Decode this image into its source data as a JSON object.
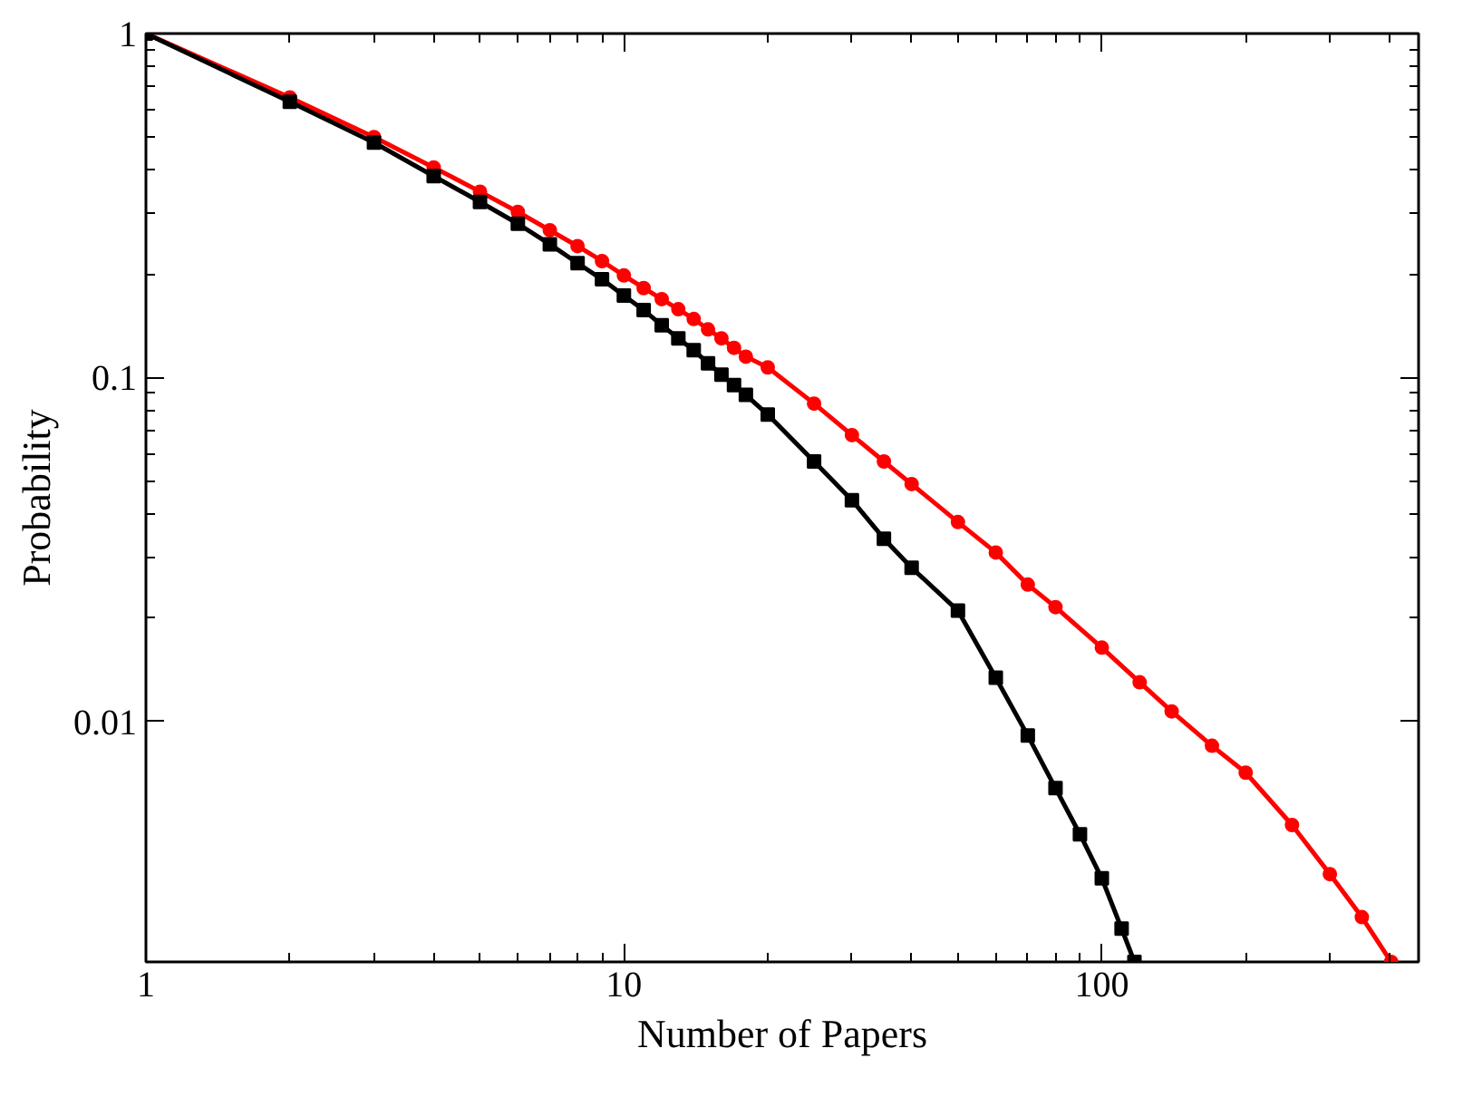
{
  "chart_data": {
    "type": "line",
    "xlabel": "Number of Papers",
    "ylabel": "Probability",
    "log": "xy",
    "xlim": [
      1,
      460
    ],
    "ylim": [
      0.002,
      1
    ],
    "xticks": [
      1,
      10,
      100
    ],
    "yticks": [
      0.01,
      0.1,
      1
    ],
    "grid": false,
    "line_style": "solid",
    "series": [
      {
        "color": "#ff0000",
        "marker": "circle",
        "x": [
          1,
          2,
          3,
          4,
          5,
          6,
          7,
          8,
          9,
          10,
          11,
          12,
          13,
          14,
          15,
          16,
          17,
          18,
          20,
          25,
          30,
          35,
          40,
          50,
          60,
          70,
          80,
          100,
          120,
          140,
          170,
          200,
          250,
          300,
          350,
          403
        ],
        "values": [
          1,
          0.652,
          0.5,
          0.408,
          0.347,
          0.303,
          0.268,
          0.241,
          0.218,
          0.198,
          0.182,
          0.169,
          0.158,
          0.148,
          0.138,
          0.13,
          0.122,
          0.115,
          0.107,
          0.084,
          0.068,
          0.057,
          0.049,
          0.038,
          0.031,
          0.025,
          0.0215,
          0.0164,
          0.013,
          0.0107,
          0.0085,
          0.0071,
          0.005,
          0.0036,
          0.0027,
          0.002
        ]
      },
      {
        "color": "#000000",
        "marker": "square",
        "x": [
          1,
          2,
          3,
          4,
          5,
          6,
          7,
          8,
          9,
          10,
          11,
          12,
          13,
          14,
          15,
          16,
          17,
          18,
          20,
          25,
          30,
          35,
          40,
          50,
          60,
          70,
          80,
          90,
          100,
          110,
          117
        ],
        "values": [
          1,
          0.633,
          0.482,
          0.385,
          0.324,
          0.28,
          0.244,
          0.215,
          0.193,
          0.173,
          0.157,
          0.142,
          0.13,
          0.12,
          0.11,
          0.102,
          0.095,
          0.089,
          0.078,
          0.057,
          0.044,
          0.034,
          0.028,
          0.021,
          0.0134,
          0.0091,
          0.0064,
          0.0047,
          0.0035,
          0.0025,
          0.002
        ]
      }
    ]
  }
}
